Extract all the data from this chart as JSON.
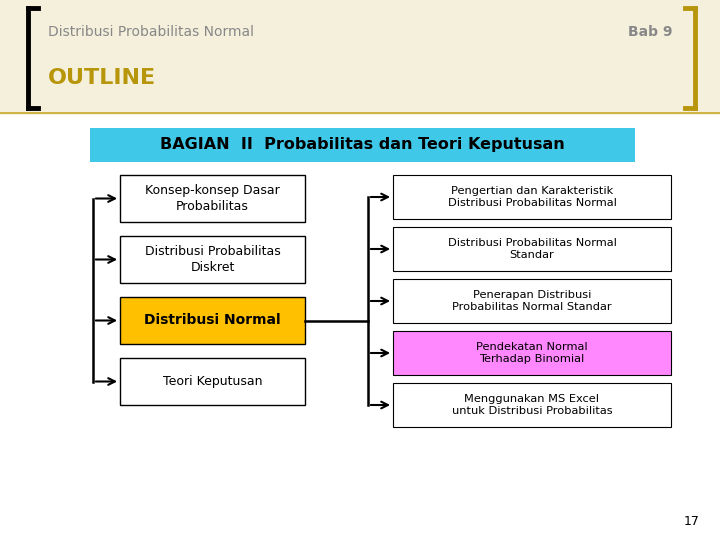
{
  "title_left": "Distribusi Probabilitas Normal",
  "title_right": "Bab 9",
  "outline_text": "OUTLINE",
  "header_text": "BAGIAN  II  Probabilitas dan Teori Keputusan",
  "header_bg": "#40C8E8",
  "left_boxes": [
    {
      "text": "Konsep-konsep Dasar\nProbabilitas",
      "bg": "#FFFFFF",
      "bold": false
    },
    {
      "text": "Distribusi Probabilitas\nDiskret",
      "bg": "#FFFFFF",
      "bold": false
    },
    {
      "text": "Distribusi Normal",
      "bg": "#FFC000",
      "bold": true
    },
    {
      "text": "Teori Keputusan",
      "bg": "#FFFFFF",
      "bold": false
    }
  ],
  "right_boxes": [
    {
      "text": "Pengertian dan Karakteristik\nDistribusi Probabilitas Normal",
      "bg": "#FFFFFF",
      "bold": false
    },
    {
      "text": "Distribusi Probabilitas Normal\nStandar",
      "bg": "#FFFFFF",
      "bold": false
    },
    {
      "text": "Penerapan Distribusi\nProbabilitas Normal Standar",
      "bg": "#FFFFFF",
      "bold": false
    },
    {
      "text": "Pendekatan Normal\nTerhadap Binomial",
      "bg": "#FF88FF",
      "bold": false
    },
    {
      "text": "Menggunakan MS Excel\nuntuk Distribusi Probabilitas",
      "bg": "#FFFFFF",
      "bold": false
    }
  ],
  "page_number": "17",
  "outline_color": "#B8960C",
  "background_color": "#FFFFFF",
  "title_color": "#888888"
}
